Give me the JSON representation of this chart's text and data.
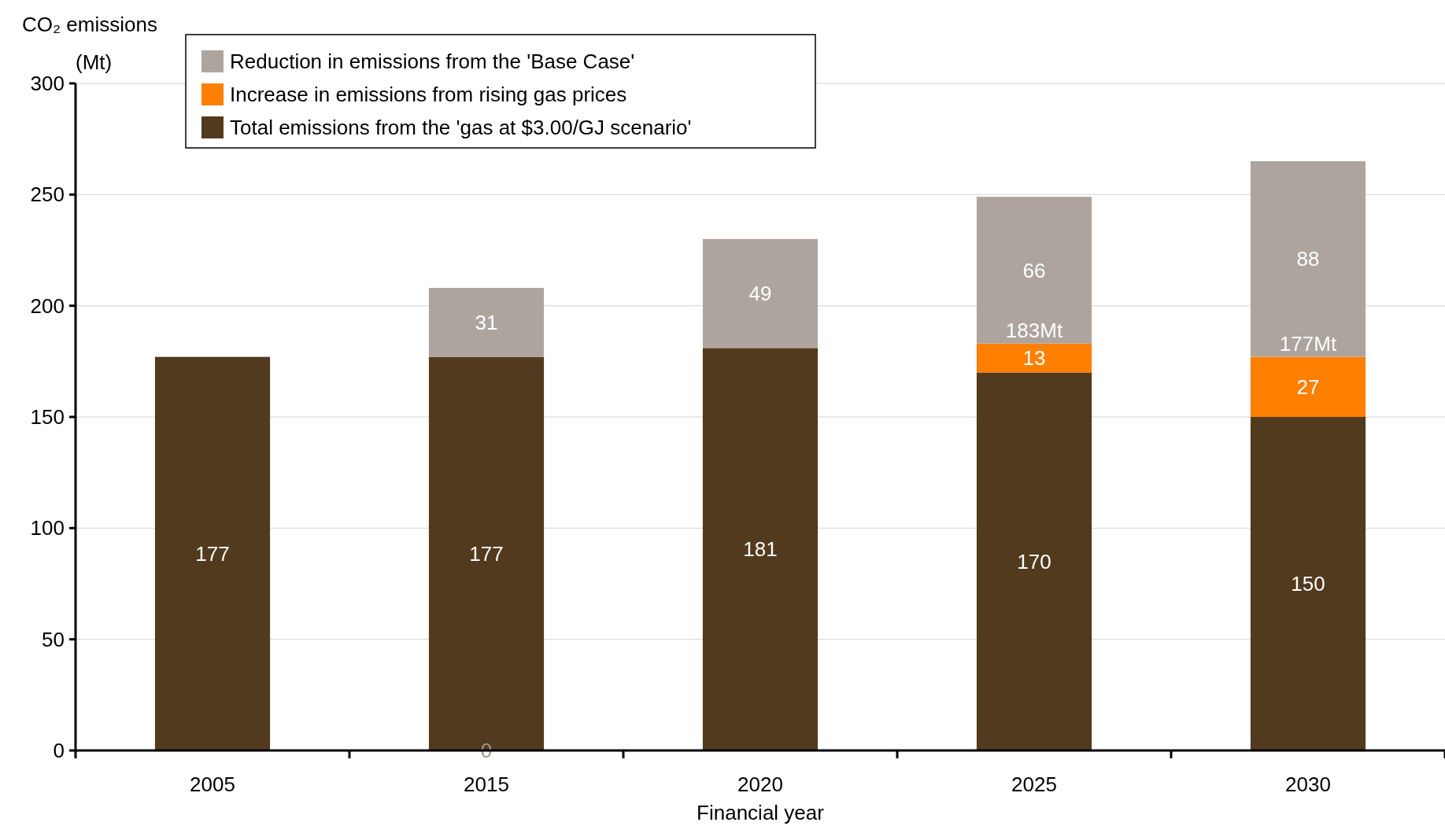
{
  "chart_data": {
    "type": "bar",
    "stacked": true,
    "xlabel": "Financial year",
    "ylabel": "CO₂ emissions\n(Mt)",
    "categories": [
      "2005",
      "2015",
      "2020",
      "2025",
      "2030"
    ],
    "series": [
      {
        "name": "Total emissions from the 'gas at $3.00/GJ scenario'",
        "color": "#523a1e",
        "values": [
          177,
          177,
          181,
          170,
          150
        ]
      },
      {
        "name": "Increase in emissions from rising gas prices",
        "color": "#ff7f00",
        "values": [
          null,
          null,
          null,
          13,
          27
        ]
      },
      {
        "name": "Reduction in emissions from the 'Base Case'",
        "color": "#ada59d",
        "values": [
          null,
          31,
          49,
          66,
          88
        ]
      }
    ],
    "ylim": [
      0,
      300
    ],
    "yticks": [
      0,
      50,
      100,
      150,
      200,
      250,
      300
    ],
    "grid": "y",
    "legend": "top left",
    "data_labels": true,
    "annotations": [
      {
        "text": "183Mt",
        "x": "2025",
        "y": 183
      },
      {
        "text": "177Mt",
        "x": "2030",
        "y": 177
      },
      {
        "text": "0",
        "x": "2015",
        "y": 0
      }
    ]
  }
}
